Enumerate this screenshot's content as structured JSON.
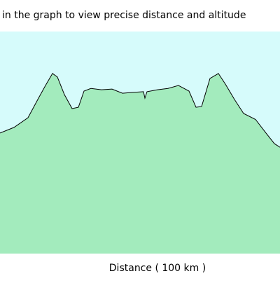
{
  "chart_data": {
    "type": "area",
    "title": "in the graph to view precise distance and altitude",
    "x_label": "Distance ( 100 km )",
    "x": [
      0,
      5,
      10,
      13.75,
      16.25,
      18.75,
      20.5,
      23,
      25.75,
      28,
      30,
      32.5,
      36.25,
      40,
      43.75,
      47.5,
      51.25,
      51.75,
      52.5,
      56.25,
      60,
      63.75,
      67.5,
      70,
      72,
      75,
      78,
      80.5,
      83.75,
      87,
      91.25,
      95,
      98,
      100
    ],
    "values": [
      54.3,
      56.8,
      61.2,
      70.0,
      75.7,
      81.1,
      79.5,
      71.6,
      65.3,
      65.9,
      73.2,
      74.4,
      73.8,
      74.1,
      72.2,
      72.6,
      72.9,
      70.0,
      72.9,
      73.8,
      74.4,
      75.7,
      73.2,
      65.9,
      66.2,
      78.9,
      81.1,
      76.3,
      69.4,
      63.1,
      60.4,
      54.3,
      49.5,
      47.9
    ],
    "color": "#a3ebbd",
    "background": "#d6fbfb",
    "xlim": [
      0,
      100
    ],
    "ylim": [
      0,
      100
    ]
  }
}
